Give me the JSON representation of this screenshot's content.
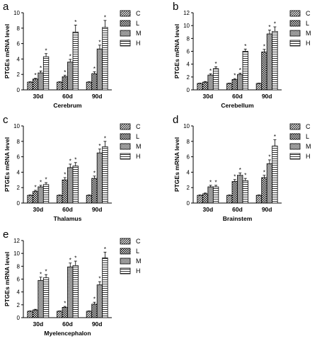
{
  "legend": [
    "C",
    "L",
    "M",
    "H"
  ],
  "chart_data": [
    {
      "panel": "a",
      "type": "bar",
      "xlabel": "Cerebrum",
      "ylabel": "PTGEs mRNA level",
      "ylim": [
        0,
        10
      ],
      "yticks": [
        0,
        2,
        4,
        6,
        8,
        10
      ],
      "categories": [
        "30d",
        "60d",
        "90d"
      ],
      "series": [
        {
          "name": "C",
          "values": [
            1.0,
            1.0,
            1.0
          ],
          "errors": [
            0.05,
            0.05,
            0.05
          ],
          "sig": [
            false,
            false,
            false
          ]
        },
        {
          "name": "L",
          "values": [
            1.4,
            1.7,
            2.1
          ],
          "errors": [
            0.1,
            0.2,
            0.25
          ],
          "sig": [
            true,
            true,
            true
          ]
        },
        {
          "name": "M",
          "values": [
            2.2,
            3.6,
            5.3
          ],
          "errors": [
            0.25,
            0.35,
            0.5
          ],
          "sig": [
            true,
            true,
            true
          ]
        },
        {
          "name": "H",
          "values": [
            4.3,
            7.5,
            8.1
          ],
          "errors": [
            0.4,
            0.9,
            0.9
          ],
          "sig": [
            true,
            true,
            true
          ]
        }
      ]
    },
    {
      "panel": "b",
      "type": "bar",
      "xlabel": "Cerebellum",
      "ylabel": "PTGEs mRNA level",
      "ylim": [
        0,
        12
      ],
      "yticks": [
        0,
        2,
        4,
        6,
        8,
        10,
        12
      ],
      "categories": [
        "30d",
        "60d",
        "90d"
      ],
      "series": [
        {
          "name": "C",
          "values": [
            1.0,
            1.0,
            1.0
          ],
          "errors": [
            0.05,
            0.05,
            0.05
          ],
          "sig": [
            false,
            false,
            false
          ]
        },
        {
          "name": "L",
          "values": [
            1.2,
            1.6,
            5.9
          ],
          "errors": [
            0.1,
            0.15,
            0.4
          ],
          "sig": [
            false,
            true,
            true
          ]
        },
        {
          "name": "M",
          "values": [
            2.3,
            2.4,
            8.7
          ],
          "errors": [
            0.2,
            0.2,
            0.6
          ],
          "sig": [
            true,
            true,
            true
          ]
        },
        {
          "name": "H",
          "values": [
            3.3,
            6.0,
            9.1
          ],
          "errors": [
            0.3,
            0.35,
            0.7
          ],
          "sig": [
            true,
            true,
            true
          ]
        }
      ]
    },
    {
      "panel": "c",
      "type": "bar",
      "xlabel": "Thalamus",
      "ylabel": "PTGEs mRNA level",
      "ylim": [
        0,
        10
      ],
      "yticks": [
        0,
        2,
        4,
        6,
        8,
        10
      ],
      "categories": [
        "30d",
        "60d",
        "90d"
      ],
      "series": [
        {
          "name": "C",
          "values": [
            1.0,
            1.0,
            1.0
          ],
          "errors": [
            0.05,
            0.05,
            0.05
          ],
          "sig": [
            false,
            false,
            false
          ]
        },
        {
          "name": "L",
          "values": [
            1.5,
            3.0,
            3.2
          ],
          "errors": [
            0.15,
            0.3,
            0.3
          ],
          "sig": [
            true,
            true,
            true
          ]
        },
        {
          "name": "M",
          "values": [
            2.1,
            4.6,
            6.5
          ],
          "errors": [
            0.2,
            0.45,
            0.5
          ],
          "sig": [
            true,
            true,
            true
          ]
        },
        {
          "name": "H",
          "values": [
            2.4,
            4.8,
            7.3
          ],
          "errors": [
            0.25,
            0.45,
            0.7
          ],
          "sig": [
            true,
            true,
            true
          ]
        }
      ]
    },
    {
      "panel": "d",
      "type": "bar",
      "xlabel": "Brainstem",
      "ylabel": "PTGEs mRNA level",
      "ylim": [
        0,
        10
      ],
      "yticks": [
        0,
        2,
        4,
        6,
        8,
        10
      ],
      "categories": [
        "30d",
        "60d",
        "90d"
      ],
      "series": [
        {
          "name": "C",
          "values": [
            1.0,
            1.0,
            1.0
          ],
          "errors": [
            0.05,
            0.05,
            0.05
          ],
          "sig": [
            false,
            false,
            false
          ]
        },
        {
          "name": "L",
          "values": [
            1.2,
            2.8,
            3.3
          ],
          "errors": [
            0.1,
            0.25,
            0.3
          ],
          "sig": [
            false,
            true,
            true
          ]
        },
        {
          "name": "M",
          "values": [
            2.1,
            3.6,
            5.1
          ],
          "errors": [
            0.2,
            0.3,
            0.5
          ],
          "sig": [
            true,
            true,
            true
          ]
        },
        {
          "name": "H",
          "values": [
            2.1,
            2.9,
            7.4
          ],
          "errors": [
            0.2,
            0.3,
            0.8
          ],
          "sig": [
            true,
            true,
            true
          ]
        }
      ]
    },
    {
      "panel": "e",
      "type": "bar",
      "xlabel": "Myelencephalon",
      "ylabel": "PTGEs mRNA level",
      "ylim": [
        0,
        12
      ],
      "yticks": [
        0,
        2,
        4,
        6,
        8,
        10,
        12
      ],
      "categories": [
        "30d",
        "60d",
        "90d"
      ],
      "series": [
        {
          "name": "C",
          "values": [
            1.0,
            1.0,
            1.0
          ],
          "errors": [
            0.05,
            0.05,
            0.05
          ],
          "sig": [
            false,
            false,
            false
          ]
        },
        {
          "name": "L",
          "values": [
            1.2,
            1.6,
            2.1
          ],
          "errors": [
            0.1,
            0.15,
            0.3
          ],
          "sig": [
            false,
            true,
            true
          ]
        },
        {
          "name": "M",
          "values": [
            5.8,
            7.9,
            5.1
          ],
          "errors": [
            0.5,
            0.6,
            0.5
          ],
          "sig": [
            true,
            true,
            true
          ]
        },
        {
          "name": "H",
          "values": [
            6.2,
            8.1,
            9.3
          ],
          "errors": [
            0.5,
            0.7,
            0.9
          ],
          "sig": [
            true,
            true,
            true
          ]
        }
      ]
    }
  ]
}
